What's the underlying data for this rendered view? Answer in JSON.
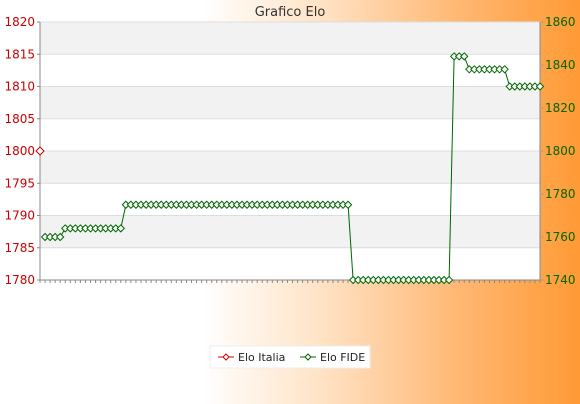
{
  "chart_data": {
    "type": "line",
    "title": "Grafico Elo",
    "xlabel": "",
    "ylabel_left": "",
    "ylabel_right": "",
    "grid": true,
    "legend_position": "bottom-center",
    "y_left": {
      "min": 1780,
      "max": 1820,
      "ticks": [
        1780,
        1785,
        1790,
        1795,
        1800,
        1805,
        1810,
        1815,
        1820
      ],
      "color": "#cc0000"
    },
    "y_right": {
      "min": 1740,
      "max": 1860,
      "ticks": [
        1740,
        1760,
        1780,
        1800,
        1820,
        1840,
        1860
      ],
      "color": "#006600"
    },
    "x_count": 100,
    "series": [
      {
        "name": "Elo Italia",
        "axis": "left",
        "color": "#cc0000",
        "points": [
          {
            "i": 0,
            "y": 1800
          }
        ]
      },
      {
        "name": "Elo FIDE",
        "axis": "right",
        "color": "#006600",
        "runs": [
          {
            "from": 1,
            "to": 4,
            "y": 1760
          },
          {
            "from": 5,
            "to": 16,
            "y": 1764
          },
          {
            "from": 17,
            "to": 61,
            "y": 1775
          },
          {
            "from": 62,
            "to": 81,
            "y": 1740
          },
          {
            "from": 82,
            "to": 84,
            "y": 1844
          },
          {
            "from": 85,
            "to": 92,
            "y": 1838
          },
          {
            "from": 93,
            "to": 99,
            "y": 1830
          }
        ]
      }
    ]
  },
  "legend": {
    "items": [
      {
        "label": "Elo Italia",
        "color": "#cc0000"
      },
      {
        "label": "Elo FIDE",
        "color": "#006600"
      }
    ]
  }
}
